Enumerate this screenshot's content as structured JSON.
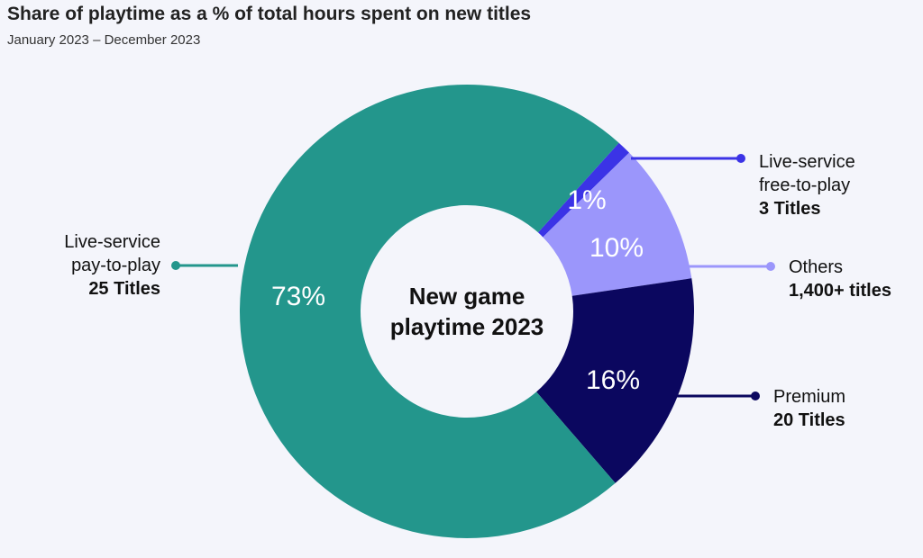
{
  "title": "Share of playtime as a % of total hours spent on new titles",
  "subtitle": "January 2023 – December 2023",
  "center_label": [
    "New game",
    "playtime 2023"
  ],
  "chart_data": {
    "type": "pie",
    "title": "Share of playtime as a % of total hours spent on new titles",
    "subtitle": "January 2023 – December 2023",
    "slices": [
      {
        "name": "Live-service free-to-play",
        "value": 1,
        "label": "1%",
        "count": "3 Titles",
        "color": "#3b33e6",
        "label_color": "#ffffff"
      },
      {
        "name": "Others",
        "value": 10,
        "label": "10%",
        "count": "1,400+ titles",
        "color": "#9b96fb",
        "label_color": "#ffffff"
      },
      {
        "name": "Premium",
        "value": 16,
        "label": "16%",
        "count": "20 Titles",
        "color": "#0b075f",
        "label_color": "#ffffff"
      },
      {
        "name": "Live-service pay-to-play",
        "value": 73,
        "label": "73%",
        "count": "25 Titles",
        "color": "#23968c",
        "label_color": "#ffffff"
      }
    ]
  },
  "legend": [
    {
      "line1": "Live-service",
      "line2": "free-to-play",
      "count": "3 Titles"
    },
    {
      "line1": "Others",
      "count": "1,400+ titles"
    },
    {
      "line1": "Premium",
      "count": "20 Titles"
    },
    {
      "line1": "Live-service",
      "line2": "pay-to-play",
      "count": "25 Titles"
    }
  ]
}
